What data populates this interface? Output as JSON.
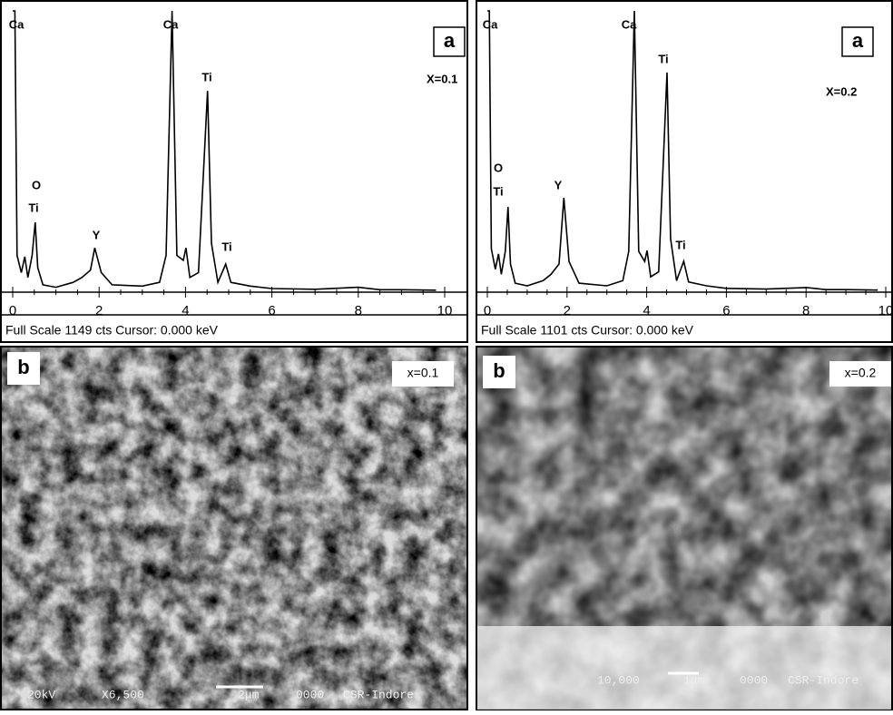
{
  "chart_data": [
    {
      "type": "line",
      "panel_label": "a",
      "composition": "X=0.1",
      "footer": "Full Scale 1149 cts   Cursor: 0.000 keV",
      "annotations": [
        "Ca",
        "Ca",
        "O",
        "Ti",
        "Y",
        "Ti",
        "Ti"
      ],
      "xlim": [
        0,
        10
      ],
      "xticks": [
        0,
        2,
        4,
        6,
        8,
        10
      ],
      "ylim": [
        0,
        1149
      ],
      "color": "#000000",
      "x": [
        0.0,
        0.05,
        0.1,
        0.2,
        0.28,
        0.35,
        0.45,
        0.52,
        0.58,
        0.7,
        1.0,
        1.4,
        1.6,
        1.8,
        1.9,
        2.05,
        2.3,
        3.0,
        3.4,
        3.55,
        3.69,
        3.8,
        3.95,
        4.01,
        4.1,
        4.3,
        4.51,
        4.6,
        4.75,
        4.93,
        5.05,
        5.5,
        6.0,
        7.0,
        8.0,
        8.5,
        9.0,
        9.8
      ],
      "values": [
        1149,
        1149,
        150,
        80,
        145,
        60,
        150,
        285,
        100,
        30,
        20,
        40,
        60,
        90,
        181,
        80,
        30,
        25,
        40,
        150,
        1149,
        150,
        130,
        181,
        60,
        80,
        822,
        200,
        40,
        115,
        40,
        25,
        15,
        12,
        20,
        10,
        10,
        8
      ]
    },
    {
      "type": "line",
      "panel_label": "a",
      "composition": "X=0.2",
      "footer": "Full Scale 1101 cts   Cursor: 0.000 keV",
      "annotations": [
        "Ca",
        "Ca",
        "O",
        "Ti",
        "Y",
        "Ti",
        "Ti"
      ],
      "xlim": [
        0,
        10
      ],
      "xticks": [
        0,
        2,
        4,
        6,
        8,
        10
      ],
      "ylim": [
        0,
        1101
      ],
      "color": "#000000",
      "x": [
        0.0,
        0.05,
        0.1,
        0.2,
        0.28,
        0.35,
        0.45,
        0.52,
        0.58,
        0.7,
        1.0,
        1.4,
        1.6,
        1.8,
        1.92,
        2.05,
        2.3,
        3.0,
        3.4,
        3.55,
        3.69,
        3.8,
        3.95,
        4.01,
        4.1,
        4.3,
        4.51,
        4.6,
        4.75,
        4.93,
        5.05,
        5.5,
        6.0,
        7.0,
        8.0,
        8.5,
        9.0,
        9.8
      ],
      "values": [
        1101,
        1101,
        170,
        90,
        150,
        70,
        160,
        334,
        110,
        35,
        25,
        45,
        70,
        110,
        369,
        120,
        35,
        25,
        45,
        160,
        1101,
        160,
        120,
        163,
        60,
        80,
        860,
        210,
        45,
        121,
        40,
        25,
        15,
        12,
        18,
        10,
        10,
        8
      ]
    }
  ],
  "sem_panels": [
    {
      "panel_label": "b",
      "composition": "x=0.1",
      "voltage": "20kV",
      "magnification": "X6,500",
      "scale": "2μm",
      "code": "0000",
      "lab": "CSR-Indore"
    },
    {
      "panel_label": "b",
      "composition": "x=0.2",
      "magnification": "10,000",
      "scale": "1μm",
      "code": "0000",
      "lab": "CSR-Indore"
    }
  ]
}
